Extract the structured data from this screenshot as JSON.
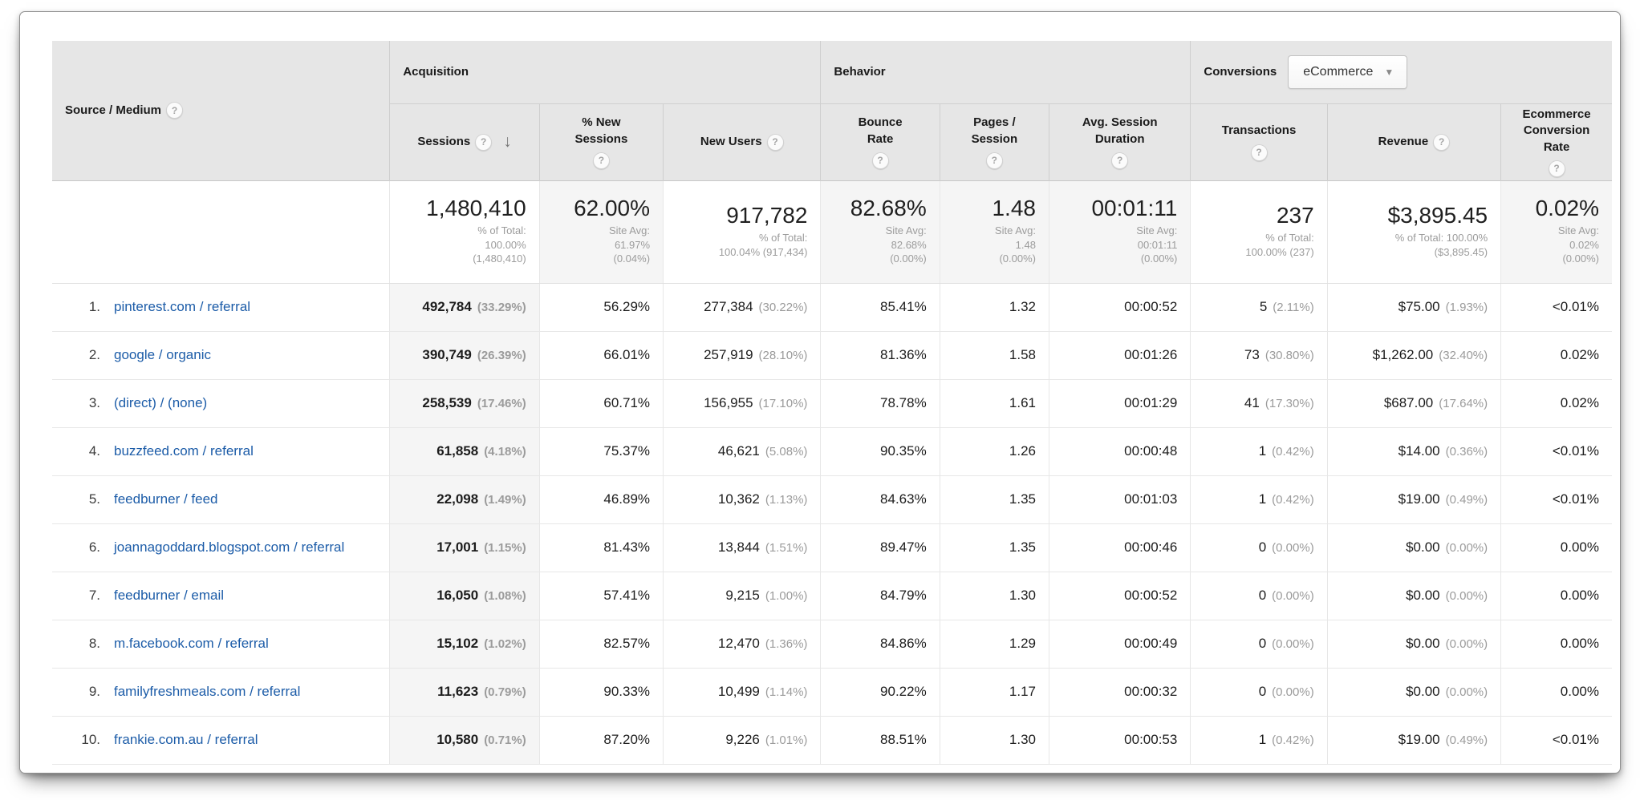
{
  "icons": {
    "help": "?",
    "sort_desc": "↓",
    "dropdown_arrow": "▼"
  },
  "colors": {
    "link_blue": "#1c5ca8",
    "header_bg": "#e6e6e6",
    "sorted_column_bg": "#f5f5f5",
    "secondary_text": "#9b9b9b"
  },
  "table": {
    "row_label_header": {
      "label": "Source / Medium"
    },
    "groups": [
      {
        "label": "Acquisition"
      },
      {
        "label": "Behavior"
      },
      {
        "label": "Conversions"
      }
    ],
    "conversions_selector": {
      "value": "eCommerce"
    },
    "columns": [
      {
        "id": "sessions",
        "label": "Sessions",
        "sorted": "descending"
      },
      {
        "id": "pct_new_sessions",
        "label": "% New Sessions"
      },
      {
        "id": "new_users",
        "label": "New Users"
      },
      {
        "id": "bounce_rate",
        "label": "Bounce Rate"
      },
      {
        "id": "pages_session",
        "label": "Pages / Session"
      },
      {
        "id": "avg_session_duration",
        "label": "Avg. Session Duration"
      },
      {
        "id": "transactions",
        "label": "Transactions"
      },
      {
        "id": "revenue",
        "label": "Revenue"
      },
      {
        "id": "ecommerce_conversion_rate",
        "label": "Ecommerce Conversion Rate"
      }
    ],
    "totals": [
      {
        "value": "1,480,410",
        "sub": [
          "% of Total:",
          "100.00%",
          "(1,480,410)"
        ]
      },
      {
        "value": "62.00%",
        "sub": [
          "Site Avg:",
          "61.97%",
          "(0.04%)"
        ]
      },
      {
        "value": "917,782",
        "sub": [
          "% of Total:",
          "100.04% (917,434)"
        ]
      },
      {
        "value": "82.68%",
        "sub": [
          "Site Avg:",
          "82.68%",
          "(0.00%)"
        ]
      },
      {
        "value": "1.48",
        "sub": [
          "Site Avg:",
          "1.48",
          "(0.00%)"
        ]
      },
      {
        "value": "00:01:11",
        "sub": [
          "Site Avg:",
          "00:01:11",
          "(0.00%)"
        ]
      },
      {
        "value": "237",
        "sub": [
          "% of Total:",
          "100.00% (237)"
        ]
      },
      {
        "value": "$3,895.45",
        "sub": [
          "% of Total: 100.00%",
          "($3,895.45)"
        ]
      },
      {
        "value": "0.02%",
        "sub": [
          "Site Avg:",
          "0.02%",
          "(0.00%)"
        ]
      }
    ],
    "rows": [
      {
        "rank": "1.",
        "source": "pinterest.com / referral",
        "sessions": "492,784",
        "sessions_pct": "(33.29%)",
        "pct_new_sessions": "56.29%",
        "new_users": "277,384",
        "new_users_pct": "(30.22%)",
        "bounce_rate": "85.41%",
        "pages_session": "1.32",
        "avg_session_duration": "00:00:52",
        "transactions": "5",
        "transactions_pct": "(2.11%)",
        "revenue": "$75.00",
        "revenue_pct": "(1.93%)",
        "ecr": "<0.01%"
      },
      {
        "rank": "2.",
        "source": "google / organic",
        "sessions": "390,749",
        "sessions_pct": "(26.39%)",
        "pct_new_sessions": "66.01%",
        "new_users": "257,919",
        "new_users_pct": "(28.10%)",
        "bounce_rate": "81.36%",
        "pages_session": "1.58",
        "avg_session_duration": "00:01:26",
        "transactions": "73",
        "transactions_pct": "(30.80%)",
        "revenue": "$1,262.00",
        "revenue_pct": "(32.40%)",
        "ecr": "0.02%"
      },
      {
        "rank": "3.",
        "source": "(direct) / (none)",
        "sessions": "258,539",
        "sessions_pct": "(17.46%)",
        "pct_new_sessions": "60.71%",
        "new_users": "156,955",
        "new_users_pct": "(17.10%)",
        "bounce_rate": "78.78%",
        "pages_session": "1.61",
        "avg_session_duration": "00:01:29",
        "transactions": "41",
        "transactions_pct": "(17.30%)",
        "revenue": "$687.00",
        "revenue_pct": "(17.64%)",
        "ecr": "0.02%"
      },
      {
        "rank": "4.",
        "source": "buzzfeed.com / referral",
        "sessions": "61,858",
        "sessions_pct": "(4.18%)",
        "pct_new_sessions": "75.37%",
        "new_users": "46,621",
        "new_users_pct": "(5.08%)",
        "bounce_rate": "90.35%",
        "pages_session": "1.26",
        "avg_session_duration": "00:00:48",
        "transactions": "1",
        "transactions_pct": "(0.42%)",
        "revenue": "$14.00",
        "revenue_pct": "(0.36%)",
        "ecr": "<0.01%"
      },
      {
        "rank": "5.",
        "source": "feedburner / feed",
        "sessions": "22,098",
        "sessions_pct": "(1.49%)",
        "pct_new_sessions": "46.89%",
        "new_users": "10,362",
        "new_users_pct": "(1.13%)",
        "bounce_rate": "84.63%",
        "pages_session": "1.35",
        "avg_session_duration": "00:01:03",
        "transactions": "1",
        "transactions_pct": "(0.42%)",
        "revenue": "$19.00",
        "revenue_pct": "(0.49%)",
        "ecr": "<0.01%"
      },
      {
        "rank": "6.",
        "source": "joannagoddard.blogspot.com / referral",
        "sessions": "17,001",
        "sessions_pct": "(1.15%)",
        "pct_new_sessions": "81.43%",
        "new_users": "13,844",
        "new_users_pct": "(1.51%)",
        "bounce_rate": "89.47%",
        "pages_session": "1.35",
        "avg_session_duration": "00:00:46",
        "transactions": "0",
        "transactions_pct": "(0.00%)",
        "revenue": "$0.00",
        "revenue_pct": "(0.00%)",
        "ecr": "0.00%"
      },
      {
        "rank": "7.",
        "source": "feedburner / email",
        "sessions": "16,050",
        "sessions_pct": "(1.08%)",
        "pct_new_sessions": "57.41%",
        "new_users": "9,215",
        "new_users_pct": "(1.00%)",
        "bounce_rate": "84.79%",
        "pages_session": "1.30",
        "avg_session_duration": "00:00:52",
        "transactions": "0",
        "transactions_pct": "(0.00%)",
        "revenue": "$0.00",
        "revenue_pct": "(0.00%)",
        "ecr": "0.00%"
      },
      {
        "rank": "8.",
        "source": "m.facebook.com / referral",
        "sessions": "15,102",
        "sessions_pct": "(1.02%)",
        "pct_new_sessions": "82.57%",
        "new_users": "12,470",
        "new_users_pct": "(1.36%)",
        "bounce_rate": "84.86%",
        "pages_session": "1.29",
        "avg_session_duration": "00:00:49",
        "transactions": "0",
        "transactions_pct": "(0.00%)",
        "revenue": "$0.00",
        "revenue_pct": "(0.00%)",
        "ecr": "0.00%"
      },
      {
        "rank": "9.",
        "source": "familyfreshmeals.com / referral",
        "sessions": "11,623",
        "sessions_pct": "(0.79%)",
        "pct_new_sessions": "90.33%",
        "new_users": "10,499",
        "new_users_pct": "(1.14%)",
        "bounce_rate": "90.22%",
        "pages_session": "1.17",
        "avg_session_duration": "00:00:32",
        "transactions": "0",
        "transactions_pct": "(0.00%)",
        "revenue": "$0.00",
        "revenue_pct": "(0.00%)",
        "ecr": "0.00%"
      },
      {
        "rank": "10.",
        "source": "frankie.com.au / referral",
        "sessions": "10,580",
        "sessions_pct": "(0.71%)",
        "pct_new_sessions": "87.20%",
        "new_users": "9,226",
        "new_users_pct": "(1.01%)",
        "bounce_rate": "88.51%",
        "pages_session": "1.30",
        "avg_session_duration": "00:00:53",
        "transactions": "1",
        "transactions_pct": "(0.42%)",
        "revenue": "$19.00",
        "revenue_pct": "(0.49%)",
        "ecr": "<0.01%"
      }
    ]
  }
}
